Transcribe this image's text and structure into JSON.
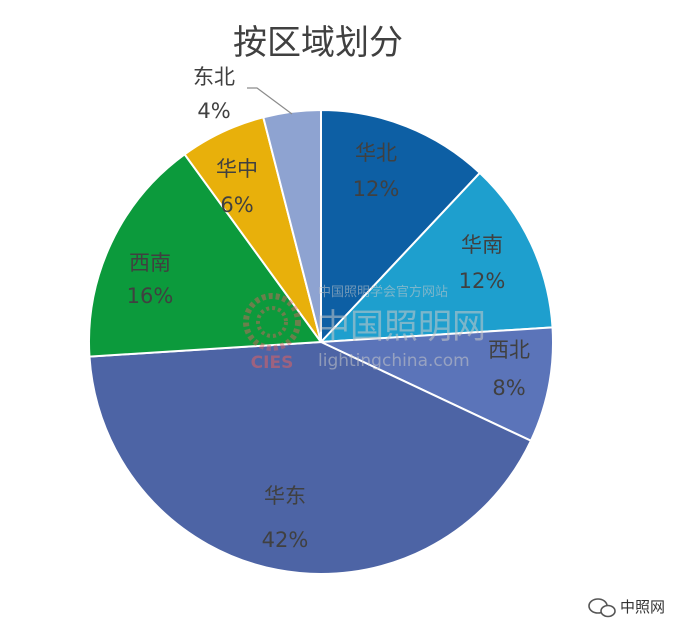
{
  "chart_data": {
    "type": "pie",
    "title": "按区域划分",
    "slices": [
      {
        "label": "华北",
        "value": 12,
        "value_label": "12%",
        "color": "#0d5fa4"
      },
      {
        "label": "华南",
        "value": 12,
        "value_label": "12%",
        "color": "#1e9fce"
      },
      {
        "label": "西北",
        "value": 8,
        "value_label": "8%",
        "color": "#5b74b9"
      },
      {
        "label": "华东",
        "value": 42,
        "value_label": "42%",
        "color": "#4d64a5"
      },
      {
        "label": "西南",
        "value": 16,
        "value_label": "16%",
        "color": "#0c9a3c"
      },
      {
        "label": "华中",
        "value": 6,
        "value_label": "6%",
        "color": "#e8b00b"
      },
      {
        "label": "东北",
        "value": 4,
        "value_label": "4%",
        "color": "#8ea3d1"
      }
    ],
    "start": "12 o'clock",
    "direction": "clockwise"
  },
  "watermark": {
    "chinese": "中国照明网",
    "english": "lightingchina.com",
    "small": "中国照明学会官方网站",
    "logo_text": "CIES"
  },
  "footer": {
    "brand": "中照网",
    "icon": "wechat-icon"
  }
}
